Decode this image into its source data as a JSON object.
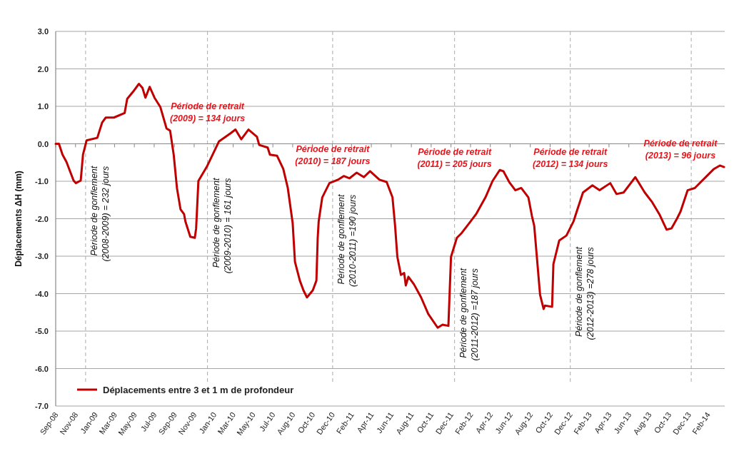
{
  "chart_data": {
    "type": "line",
    "ylabel": "Déplacements ΔH (mm)",
    "xlim": [
      "2008-09-01",
      "2014-04-21"
    ],
    "xticks": [
      {
        "value": "2008-09-01",
        "label": "Sep-08"
      },
      {
        "value": "2008-11-01",
        "label": "Nov-08"
      },
      {
        "value": "2009-01-01",
        "label": "Jan-09"
      },
      {
        "value": "2009-03-01",
        "label": "Mar-09"
      },
      {
        "value": "2009-05-01",
        "label": "May-09"
      },
      {
        "value": "2009-07-01",
        "label": "Jul-09"
      },
      {
        "value": "2009-09-01",
        "label": "Sep-09"
      },
      {
        "value": "2009-11-01",
        "label": "Nov-09"
      },
      {
        "value": "2010-01-01",
        "label": "Jan-10"
      },
      {
        "value": "2010-03-01",
        "label": "Mar-10"
      },
      {
        "value": "2010-05-01",
        "label": "May-10"
      },
      {
        "value": "2010-07-01",
        "label": "Jul-10"
      },
      {
        "value": "2010-08-31",
        "label": "Aug-10"
      },
      {
        "value": "2010-10-31",
        "label": "Oct-10"
      },
      {
        "value": "2010-12-31",
        "label": "Dec-10"
      },
      {
        "value": "2011-02-28",
        "label": "Feb-11"
      },
      {
        "value": "2011-04-30",
        "label": "Apr-11"
      },
      {
        "value": "2011-06-30",
        "label": "Jun-11"
      },
      {
        "value": "2011-08-31",
        "label": "Aug-11"
      },
      {
        "value": "2011-10-31",
        "label": "Oct-11"
      },
      {
        "value": "2011-12-31",
        "label": "Dec-11"
      },
      {
        "value": "2012-02-29",
        "label": "Feb-12"
      },
      {
        "value": "2012-04-30",
        "label": "Apr-12"
      },
      {
        "value": "2012-06-30",
        "label": "Jun-12"
      },
      {
        "value": "2012-08-31",
        "label": "Aug-12"
      },
      {
        "value": "2012-10-31",
        "label": "Oct-12"
      },
      {
        "value": "2012-12-31",
        "label": "Dec-12"
      },
      {
        "value": "2013-02-28",
        "label": "Feb-13"
      },
      {
        "value": "2013-04-30",
        "label": "Apr-13"
      },
      {
        "value": "2013-06-30",
        "label": "Jun-13"
      },
      {
        "value": "2013-08-31",
        "label": "Aug-13"
      },
      {
        "value": "2013-10-31",
        "label": "Oct-13"
      },
      {
        "value": "2013-12-31",
        "label": "Dec-13"
      },
      {
        "value": "2014-02-28",
        "label": "Feb-14"
      }
    ],
    "ylim": [
      -7,
      3
    ],
    "yticks": [
      {
        "value": 3,
        "label": "3.0"
      },
      {
        "value": 2,
        "label": "2.0"
      },
      {
        "value": 1,
        "label": "1.0"
      },
      {
        "value": 0,
        "label": "0.0"
      },
      {
        "value": -1,
        "label": "-1.0"
      },
      {
        "value": -2,
        "label": "-2.0"
      },
      {
        "value": -3,
        "label": "-3.0"
      },
      {
        "value": -4,
        "label": "-4.0"
      },
      {
        "value": -5,
        "label": "-5.0"
      },
      {
        "value": -6,
        "label": "-6.0"
      },
      {
        "value": -7,
        "label": "-7.0"
      }
    ],
    "grid": "y",
    "legend": "bottom left",
    "marker": "none",
    "line_style": "solid",
    "x": [
      "2008-09-01",
      "2008-09-11",
      "2008-09-22",
      "2008-10-04",
      "2008-10-26",
      "2008-11-02",
      "2008-11-17",
      "2008-11-24",
      "2008-12-05",
      "2009-01-07",
      "2009-01-22",
      "2009-02-02",
      "2009-02-27",
      "2009-04-01",
      "2009-04-09",
      "2009-04-27",
      "2009-05-15",
      "2009-05-26",
      "2009-06-04",
      "2009-06-17",
      "2009-07-02",
      "2009-07-20",
      "2009-08-08",
      "2009-08-19",
      "2009-08-30",
      "2009-09-09",
      "2009-09-20",
      "2009-10-01",
      "2009-10-05",
      "2009-10-20",
      "2009-11-03",
      "2009-11-07",
      "2009-11-14",
      "2009-12-10",
      "2010-01-16",
      "2010-02-21",
      "2010-03-08",
      "2010-03-26",
      "2010-04-17",
      "2010-05-13",
      "2010-05-20",
      "2010-06-15",
      "2010-06-22",
      "2010-07-14",
      "2010-08-02",
      "2010-08-16",
      "2010-08-31",
      "2010-09-07",
      "2010-09-22",
      "2010-10-03",
      "2010-10-14",
      "2010-11-01",
      "2010-11-12",
      "2010-11-16",
      "2010-11-19",
      "2010-11-30",
      "2010-12-22",
      "2011-01-17",
      "2011-02-04",
      "2011-02-22",
      "2011-03-16",
      "2011-04-07",
      "2011-04-26",
      "2011-05-25",
      "2011-06-16",
      "2011-07-04",
      "2011-07-12",
      "2011-07-19",
      "2011-07-30",
      "2011-08-09",
      "2011-08-14",
      "2011-08-22",
      "2011-09-08",
      "2011-09-30",
      "2011-10-22",
      "2011-11-20",
      "2011-12-05",
      "2011-12-23",
      "2011-12-31",
      "2012-01-18",
      "2012-02-02",
      "2012-02-24",
      "2012-03-17",
      "2012-04-15",
      "2012-05-07",
      "2012-05-29",
      "2012-06-09",
      "2012-06-27",
      "2012-07-16",
      "2012-08-03",
      "2012-08-25",
      "2012-09-05",
      "2012-09-12",
      "2012-09-30",
      "2012-10-11",
      "2012-10-15",
      "2012-11-06",
      "2012-11-10",
      "2012-11-28",
      "2012-12-20",
      "2013-01-11",
      "2013-01-18",
      "2013-02-09",
      "2013-03-10",
      "2013-04-01",
      "2013-05-04",
      "2013-05-23",
      "2013-06-14",
      "2013-07-20",
      "2013-08-18",
      "2013-09-10",
      "2013-10-02",
      "2013-10-24",
      "2013-11-08",
      "2013-11-25",
      "2013-12-06",
      "2013-12-28",
      "2014-01-19",
      "2014-02-25",
      "2014-03-19",
      "2014-04-06",
      "2014-04-19"
    ],
    "series": [
      {
        "name": "Déplacements entre 3 et 1 m de profondeur",
        "color": "#c00000",
        "values": [
          0.0,
          0.0,
          -0.29,
          -0.48,
          -0.98,
          -1.05,
          -0.98,
          -0.29,
          0.09,
          0.16,
          0.57,
          0.7,
          0.7,
          0.82,
          1.2,
          1.39,
          1.6,
          1.49,
          1.23,
          1.52,
          1.23,
          0.98,
          0.41,
          0.35,
          -0.29,
          -1.18,
          -1.75,
          -1.88,
          -2.07,
          -2.48,
          -2.51,
          -2.26,
          -0.99,
          -0.61,
          0.06,
          0.28,
          0.38,
          0.12,
          0.38,
          0.19,
          -0.03,
          -0.1,
          -0.29,
          -0.32,
          -0.67,
          -1.18,
          -2.12,
          -3.15,
          -3.65,
          -3.91,
          -4.1,
          -3.91,
          -3.65,
          -2.51,
          -2.07,
          -1.43,
          -1.05,
          -0.96,
          -0.86,
          -0.92,
          -0.77,
          -0.89,
          -0.73,
          -0.96,
          -1.02,
          -1.43,
          -2.19,
          -3.02,
          -3.5,
          -3.45,
          -3.78,
          -3.55,
          -3.75,
          -4.1,
          -4.54,
          -4.91,
          -4.83,
          -4.86,
          -3.02,
          -2.51,
          -2.38,
          -2.13,
          -1.88,
          -1.43,
          -0.99,
          -0.7,
          -0.73,
          -1.02,
          -1.24,
          -1.18,
          -1.43,
          -1.93,
          -2.19,
          -4.03,
          -4.41,
          -4.32,
          -4.35,
          -3.21,
          -2.58,
          -2.45,
          -2.07,
          -1.88,
          -1.3,
          -1.11,
          -1.24,
          -1.05,
          -1.34,
          -1.3,
          -0.89,
          -1.3,
          -1.56,
          -1.88,
          -2.29,
          -2.26,
          -2.0,
          -1.81,
          -1.24,
          -1.18,
          -0.86,
          -0.67,
          -0.58,
          -0.62
        ]
      }
    ],
    "ref_lines": [
      {
        "axis": "x",
        "value": "2008-12-02",
        "label": "Période de gonflement\n(2008-2009) = 232 jours",
        "color": "#aaaaaa",
        "line_style": "dashed"
      },
      {
        "axis": "x",
        "value": "2009-12-12",
        "label": "Période de gonflement\n(2009-2010) = 161 jours",
        "color": "#aaaaaa",
        "line_style": "dashed"
      },
      {
        "axis": "x",
        "value": "2011-01-01",
        "label": "Période de gonflement\n(2010-2011) =190 jours",
        "color": "#aaaaaa",
        "line_style": "dashed"
      },
      {
        "axis": "x",
        "value": "2012-01-11",
        "label": "Période de gonflement\n(2011-2012) =187 jours",
        "color": "#aaaaaa",
        "line_style": "dashed"
      },
      {
        "axis": "x",
        "value": "2013-01-01",
        "label": "Période de gonflement\n(2012-2013) =278 jours",
        "color": "#aaaaaa",
        "line_style": "dashed"
      },
      {
        "axis": "x",
        "value": "2014-01-08",
        "color": "#aaaaaa",
        "line_style": "dashed"
      }
    ],
    "annotations": [
      "Période de retrait\n(2009) = 134 jours",
      "Période de retrait\n(2010) = 187 jours",
      "Période de retrait\n(2011) = 205 jours",
      "Période de retrait\n(2012) = 134 jours",
      "Période de retrait\n(2013) = 96 jours"
    ]
  }
}
